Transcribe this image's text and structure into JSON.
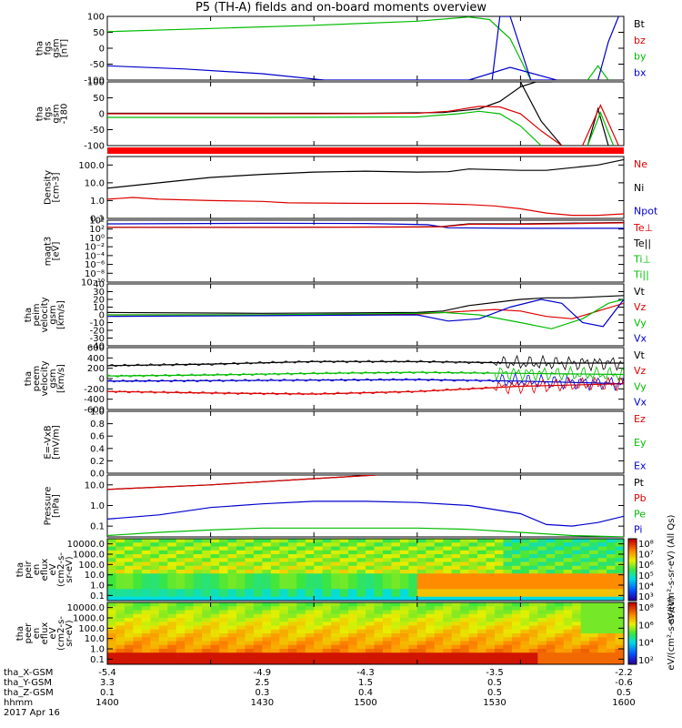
{
  "title": "P5 (TH-A) fields and on-board moments overview",
  "chart_data": [
    {
      "type": "line",
      "ylabel": [
        "tha",
        "fgs",
        "gsm",
        "[nT]"
      ],
      "ylim": [
        -100,
        100
      ],
      "yticks": [
        "100",
        "50",
        "0",
        "-50",
        "-100"
      ],
      "legend": [
        {
          "name": "Bt",
          "color": "#000000"
        },
        {
          "name": "bz",
          "color": "#dd0000"
        },
        {
          "name": "by",
          "color": "#00bb00"
        },
        {
          "name": "bx",
          "color": "#0000cc"
        }
      ],
      "series": [
        {
          "name": "by",
          "color": "#00bb00",
          "x": [
            0,
            0.2,
            0.4,
            0.6,
            0.7,
            0.74,
            0.78,
            0.82
          ],
          "y": [
            52,
            62,
            72,
            85,
            98,
            90,
            30,
            -100
          ]
        },
        {
          "name": "bx",
          "color": "#0000cc",
          "x": [
            0,
            0.15,
            0.3,
            0.42,
            0.5,
            0.6,
            0.68,
            0.7,
            0.78,
            0.87
          ],
          "y": [
            -55,
            -65,
            -80,
            -100,
            -100,
            -100,
            -100,
            -100,
            -60,
            -100
          ]
        },
        {
          "name": "bx",
          "color": "#0000cc",
          "x": [
            0.745,
            0.76,
            0.78,
            0.82,
            0.86
          ],
          "y": [
            -100,
            100,
            100,
            -100,
            -100
          ]
        },
        {
          "name": "by",
          "color": "#00bb00",
          "x": [
            0.93,
            0.95,
            0.97
          ],
          "y": [
            -100,
            -55,
            -100
          ]
        },
        {
          "name": "bx",
          "color": "#0000cc",
          "x": [
            0.95,
            0.97,
            0.99
          ],
          "y": [
            -100,
            20,
            100
          ]
        }
      ]
    },
    {
      "type": "line",
      "ylabel": [
        "tha",
        "fgs",
        "gsm",
        "-180"
      ],
      "ylim": [
        -120,
        140
      ],
      "yticks": [
        "100",
        "50",
        "0",
        "-50",
        "-100"
      ],
      "series": [
        {
          "name": "Bt",
          "color": "#000000",
          "x": [
            0,
            0.5,
            0.65,
            0.72,
            0.76,
            0.8,
            0.83,
            0.86
          ],
          "y": [
            12,
            12,
            15,
            30,
            60,
            120,
            140,
            140
          ]
        },
        {
          "name": "Bt",
          "color": "#000000",
          "x": [
            0.8,
            0.84,
            0.88
          ],
          "y": [
            140,
            -20,
            -120
          ]
        },
        {
          "name": "Bt",
          "color": "#000000",
          "x": [
            0.93,
            0.95,
            0.97
          ],
          "y": [
            -120,
            30,
            -120
          ]
        },
        {
          "name": "bz",
          "color": "#dd0000",
          "x": [
            0,
            0.2,
            0.4,
            0.6,
            0.66,
            0.72,
            0.76,
            0.8,
            0.84,
            0.88
          ],
          "y": [
            10,
            10,
            10,
            12,
            20,
            40,
            38,
            10,
            -60,
            -120
          ]
        },
        {
          "name": "bz",
          "color": "#dd0000",
          "x": [
            0.92,
            0.955,
            0.99
          ],
          "y": [
            -120,
            45,
            -120
          ]
        },
        {
          "name": "by",
          "color": "#00bb00",
          "x": [
            0,
            0.3,
            0.6,
            0.68,
            0.72,
            0.76,
            0.8,
            0.84
          ],
          "y": [
            -5,
            -5,
            -3,
            10,
            20,
            10,
            -40,
            -120
          ]
        },
        {
          "name": "by",
          "color": "#00bb00",
          "x": [
            0.93,
            0.955,
            0.98
          ],
          "y": [
            -120,
            15,
            -120
          ]
        }
      ]
    },
    {
      "type": "line",
      "ylabel": [
        "Density",
        "[cm-3]"
      ],
      "yscale": "log",
      "ylim": [
        0.1,
        300
      ],
      "yticks": [
        "100.0",
        "10.0",
        "1.0",
        "0.1"
      ],
      "ytick_values": [
        100,
        10,
        1,
        0.1
      ],
      "legend": [
        {
          "name": "Ne",
          "color": "#dd0000"
        },
        {
          "name": "Ni",
          "color": "#000000"
        },
        {
          "name": "Npot",
          "color": "#0000cc"
        }
      ],
      "series": [
        {
          "name": "Ni",
          "color": "#000000",
          "x": [
            0,
            0.1,
            0.2,
            0.3,
            0.4,
            0.5,
            0.6,
            0.66,
            0.7,
            0.8,
            0.85,
            0.95,
            1.0
          ],
          "y": [
            5,
            10,
            20,
            30,
            40,
            45,
            40,
            42,
            60,
            50,
            50,
            100,
            200
          ]
        },
        {
          "name": "Ne",
          "color": "#dd0000",
          "x": [
            0,
            0.05,
            0.1,
            0.2,
            0.3,
            0.35,
            0.5,
            0.6,
            0.7,
            0.75,
            0.8,
            0.85,
            0.9,
            0.95,
            1.0
          ],
          "y": [
            1.2,
            1.5,
            1.2,
            1.0,
            0.9,
            0.75,
            0.7,
            0.7,
            0.6,
            0.5,
            0.35,
            0.2,
            0.15,
            0.15,
            0.18
          ]
        }
      ]
    },
    {
      "type": "line",
      "ylabel": [
        "magt3",
        "[eV]"
      ],
      "yscale": "log",
      "ylim": [
        1e-10,
        10000.0
      ],
      "yticks": [
        "10⁴",
        "10²",
        "10⁰",
        "10⁻²",
        "10⁻⁴",
        "10⁻⁶",
        "10⁻⁸",
        "10⁻¹⁰"
      ],
      "ytick_values": [
        10000.0,
        100.0,
        1,
        0.01,
        0.0001,
        1e-06,
        1e-08,
        1e-10
      ],
      "legend": [
        {
          "name": "Te⊥",
          "color": "#dd0000"
        },
        {
          "name": "Te||",
          "color": "#000000"
        },
        {
          "name": "Ti⊥",
          "color": "#00bb00"
        },
        {
          "name": "Ti||",
          "color": "#00bb00"
        }
      ],
      "series": [
        {
          "name": "Ti⊥",
          "color": "#0000cc",
          "x": [
            0,
            0.3,
            0.5,
            0.62,
            0.66,
            0.8,
            1.0
          ],
          "y": [
            1500,
            2000,
            1800,
            1000,
            200,
            150,
            150
          ]
        },
        {
          "name": "Te||",
          "color": "#000000",
          "x": [
            0,
            0.3,
            0.6,
            0.65,
            0.7,
            0.8,
            1.0
          ],
          "y": [
            250,
            250,
            300,
            400,
            1500,
            1500,
            3000
          ]
        },
        {
          "name": "Te⊥",
          "color": "#dd0000",
          "x": [
            0,
            0.3,
            0.6,
            0.65,
            0.7,
            0.8,
            1.0
          ],
          "y": [
            250,
            250,
            280,
            350,
            1200,
            1200,
            2500
          ]
        }
      ]
    },
    {
      "type": "line",
      "ylabel": [
        "tha",
        "peim",
        "velocity",
        "gsm",
        "[km/s]"
      ],
      "ylim": [
        -40,
        40
      ],
      "yticks": [
        "40",
        "30",
        "20",
        "10",
        "0",
        "-10",
        "-20",
        "-30",
        "-40"
      ],
      "legend": [
        {
          "name": "Vt",
          "color": "#000000"
        },
        {
          "name": "Vz",
          "color": "#dd0000"
        },
        {
          "name": "Vy",
          "color": "#00bb00"
        },
        {
          "name": "Vx",
          "color": "#0000cc"
        }
      ],
      "series": [
        {
          "name": "Vt",
          "color": "#000000",
          "x": [
            0,
            0.3,
            0.6,
            0.65,
            0.7,
            0.8,
            0.85,
            0.9,
            1.0
          ],
          "y": [
            3,
            2,
            3,
            5,
            12,
            20,
            22,
            22,
            25
          ]
        },
        {
          "name": "Vz",
          "color": "#dd0000",
          "x": [
            0,
            0.3,
            0.6,
            0.7,
            0.75,
            0.8,
            0.85,
            0.9,
            0.95,
            1.0
          ],
          "y": [
            0,
            0,
            1,
            5,
            7,
            5,
            -2,
            -5,
            5,
            15
          ]
        },
        {
          "name": "Vy",
          "color": "#00bb00",
          "x": [
            0,
            0.3,
            0.6,
            0.65,
            0.72,
            0.8,
            0.86,
            0.92,
            0.97,
            1.0
          ],
          "y": [
            0,
            0,
            2,
            3,
            0,
            -10,
            -18,
            -5,
            15,
            20
          ]
        },
        {
          "name": "Vx",
          "color": "#0000cc",
          "x": [
            0,
            0.3,
            0.6,
            0.66,
            0.72,
            0.78,
            0.84,
            0.88,
            0.92,
            0.96,
            1.0
          ],
          "y": [
            -2,
            -1,
            0,
            -8,
            -5,
            10,
            20,
            15,
            -10,
            -15,
            20
          ]
        }
      ]
    },
    {
      "type": "line",
      "ylabel": [
        "tha",
        "peem",
        "velocity",
        "gsm",
        "[km/s]"
      ],
      "ylim": [
        -600,
        600
      ],
      "yticks": [
        "600",
        "400",
        "200",
        "0",
        "-200",
        "-400",
        "-600"
      ],
      "legend": [
        {
          "name": "Vt",
          "color": "#000000"
        },
        {
          "name": "Vz",
          "color": "#dd0000"
        },
        {
          "name": "Vy",
          "color": "#00bb00"
        },
        {
          "name": "Vx",
          "color": "#0000cc"
        }
      ],
      "series": [
        {
          "name": "Vt",
          "color": "#000000",
          "x": [
            0,
            0.2,
            0.4,
            0.6,
            0.8,
            1.0
          ],
          "y": [
            250,
            280,
            330,
            330,
            300,
            300
          ]
        },
        {
          "name": "Vy",
          "color": "#00bb00",
          "x": [
            0,
            0.2,
            0.4,
            0.6,
            0.8,
            1.0
          ],
          "y": [
            50,
            70,
            100,
            120,
            100,
            80
          ]
        },
        {
          "name": "Vx",
          "color": "#0000cc",
          "x": [
            0,
            0.2,
            0.4,
            0.6,
            0.8,
            1.0
          ],
          "y": [
            -50,
            -40,
            -30,
            -20,
            -50,
            -100
          ]
        },
        {
          "name": "Vz",
          "color": "#dd0000",
          "x": [
            0,
            0.2,
            0.4,
            0.6,
            0.8,
            1.0
          ],
          "y": [
            -250,
            -280,
            -300,
            -250,
            -150,
            -100
          ]
        }
      ]
    },
    {
      "type": "line",
      "ylabel": [
        "E=-VxB",
        "[mV/m]"
      ],
      "ylim": [
        0,
        1
      ],
      "yticks": [
        "1.0",
        "0.8",
        "0.6",
        "0.4",
        "0.2",
        "0.0"
      ],
      "legend": [
        {
          "name": "Ez",
          "color": "#dd0000"
        },
        {
          "name": "Ey",
          "color": "#00bb00"
        },
        {
          "name": "Ex",
          "color": "#0000cc"
        }
      ],
      "series": []
    },
    {
      "type": "line",
      "ylabel": [
        "Pressure",
        "[nPa]"
      ],
      "yscale": "log",
      "ylim": [
        0.03,
        30
      ],
      "yticks": [
        "10.0",
        "1.0",
        "0.1"
      ],
      "ytick_values": [
        10,
        1,
        0.1
      ],
      "legend": [
        {
          "name": "Pt",
          "color": "#000000"
        },
        {
          "name": "Pb",
          "color": "#dd0000"
        },
        {
          "name": "Pe",
          "color": "#00bb00"
        },
        {
          "name": "Pi",
          "color": "#0000cc"
        }
      ],
      "series": [
        {
          "name": "Pt",
          "color": "#000000",
          "x": [
            0,
            0.2,
            0.4,
            0.52
          ],
          "y": [
            6,
            10,
            20,
            30
          ]
        },
        {
          "name": "Pb",
          "color": "#dd0000",
          "x": [
            0,
            0.2,
            0.4,
            0.52
          ],
          "y": [
            6,
            10,
            20,
            30
          ]
        },
        {
          "name": "Pi",
          "color": "#0000cc",
          "x": [
            0,
            0.1,
            0.2,
            0.3,
            0.4,
            0.5,
            0.6,
            0.7,
            0.8,
            0.85,
            0.9,
            0.95,
            1.0
          ],
          "y": [
            0.22,
            0.35,
            0.8,
            1.2,
            1.6,
            1.6,
            1.4,
            1.0,
            0.4,
            0.12,
            0.1,
            0.15,
            0.3
          ]
        },
        {
          "name": "Pe",
          "color": "#00bb00",
          "x": [
            0,
            0.1,
            0.2,
            0.3,
            0.5,
            0.6,
            0.7,
            0.8,
            0.9,
            1.0
          ],
          "y": [
            0.035,
            0.05,
            0.065,
            0.08,
            0.08,
            0.08,
            0.07,
            0.05,
            0.035,
            0.03
          ]
        }
      ]
    },
    {
      "type": "heatmap",
      "ylabel": [
        "tha",
        "peir",
        "en",
        "eflux",
        "eV",
        "(cm2-s-",
        "sr-eV)"
      ],
      "yscale": "log",
      "yticks": [
        "10000.0",
        "1000.0",
        "100.0",
        "10.0",
        "1.0",
        "0.1"
      ],
      "colorbar_label": "eV/(cm²-s-sr-eV) (All Qs)",
      "colorbar_ticks": [
        "10⁸",
        "10⁷",
        "10⁶",
        "10⁵",
        "10⁴",
        "10³"
      ]
    },
    {
      "type": "heatmap",
      "ylabel": [
        "tha",
        "peer",
        "en",
        "eflux",
        "eV",
        "(cm2-s-",
        "sr-eV)"
      ],
      "yscale": "log",
      "yticks": [
        "10000.0",
        "1000.0",
        "100.0",
        "10.0",
        "1.0",
        "0.1"
      ],
      "colorbar_label": "eV/(cm²-s-sr-eV)",
      "colorbar_ticks": [
        "10⁸",
        "10⁶",
        "10⁴",
        "10²"
      ]
    }
  ],
  "xaxis": {
    "tick_positions": [
      0,
      0.2,
      0.4,
      0.6,
      0.8,
      1.0
    ],
    "rows": [
      {
        "label": "tha_X-GSM",
        "values": [
          "-5.4",
          "-4.9",
          "-4.3",
          "-3.5",
          "-2.2"
        ]
      },
      {
        "label": "tha_Y-GSM",
        "values": [
          "3.3",
          "2.5",
          "1.5",
          "0.5",
          "-0.6"
        ]
      },
      {
        "label": "tha_Z-GSM",
        "values": [
          "0.1",
          "0.3",
          "0.4",
          "0.5",
          "0.5"
        ]
      },
      {
        "label": "hhmm",
        "values": [
          "1400",
          "1430",
          "1500",
          "1530",
          "1600"
        ]
      }
    ],
    "value_positions": [
      0,
      0.3,
      0.5,
      0.75,
      1.0
    ],
    "date": "2017 Apr 16"
  }
}
